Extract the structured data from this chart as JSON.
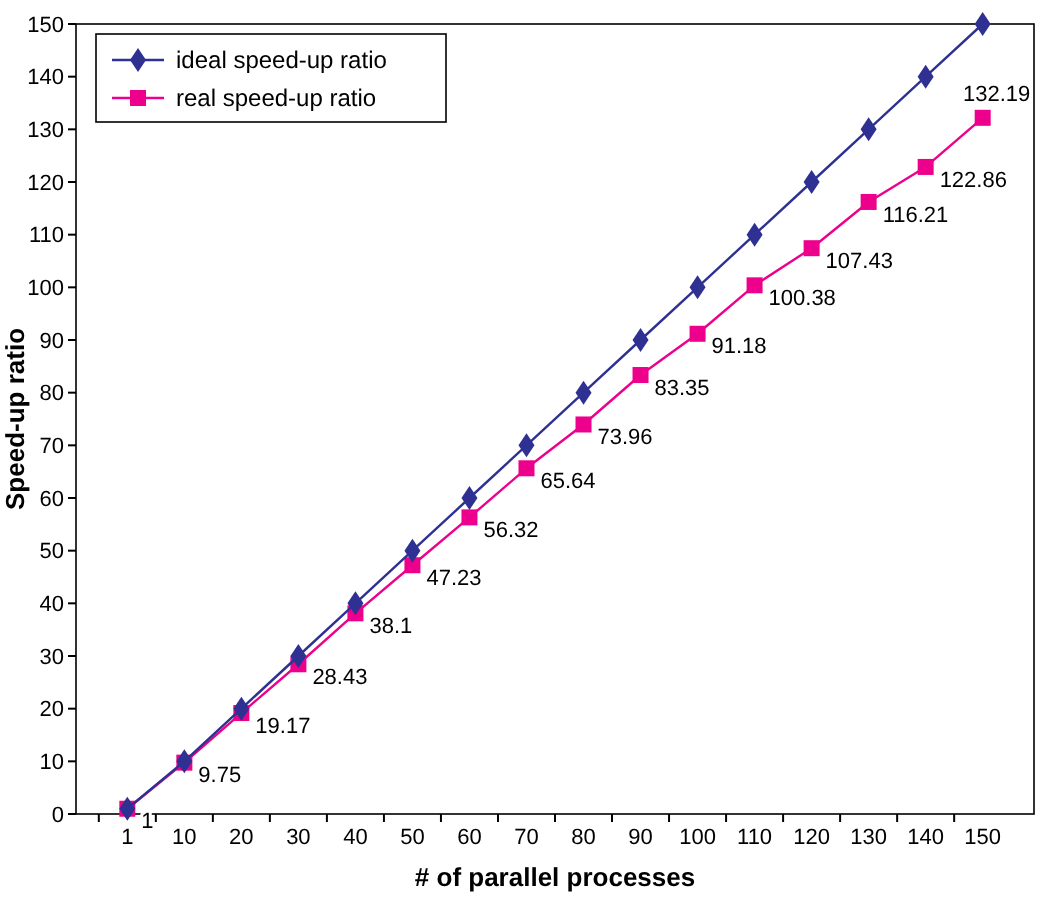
{
  "chart_data": {
    "type": "line",
    "xlabel": "# of parallel processes",
    "ylabel": "Speed-up ratio",
    "categories": [
      "1",
      "10",
      "20",
      "30",
      "40",
      "50",
      "60",
      "70",
      "80",
      "90",
      "100",
      "110",
      "120",
      "130",
      "140",
      "150"
    ],
    "ylim": [
      0,
      150
    ],
    "yticks": [
      0,
      10,
      20,
      30,
      40,
      50,
      60,
      70,
      80,
      90,
      100,
      110,
      120,
      130,
      140,
      150
    ],
    "grid": false,
    "legend": "top left",
    "series": [
      {
        "name": "ideal speed-up ratio",
        "color": "#2e3192",
        "marker": "diamond",
        "values": [
          1,
          10,
          20,
          30,
          40,
          50,
          60,
          70,
          80,
          90,
          100,
          110,
          120,
          130,
          140,
          150
        ]
      },
      {
        "name": "real speed-up ratio",
        "color": "#ec008c",
        "marker": "square",
        "values": [
          1,
          9.75,
          19.17,
          28.43,
          38.1,
          47.23,
          56.32,
          65.64,
          73.96,
          83.35,
          91.18,
          100.38,
          107.43,
          116.21,
          122.86,
          132.19
        ],
        "value_labels": [
          "1",
          "9.75",
          "19.17",
          "28.43",
          "38.1",
          "47.23",
          "56.32",
          "65.64",
          "73.96",
          "83.35",
          "91.18",
          "100.38",
          "107.43",
          "116.21",
          "122.86",
          "132.19"
        ]
      }
    ]
  }
}
